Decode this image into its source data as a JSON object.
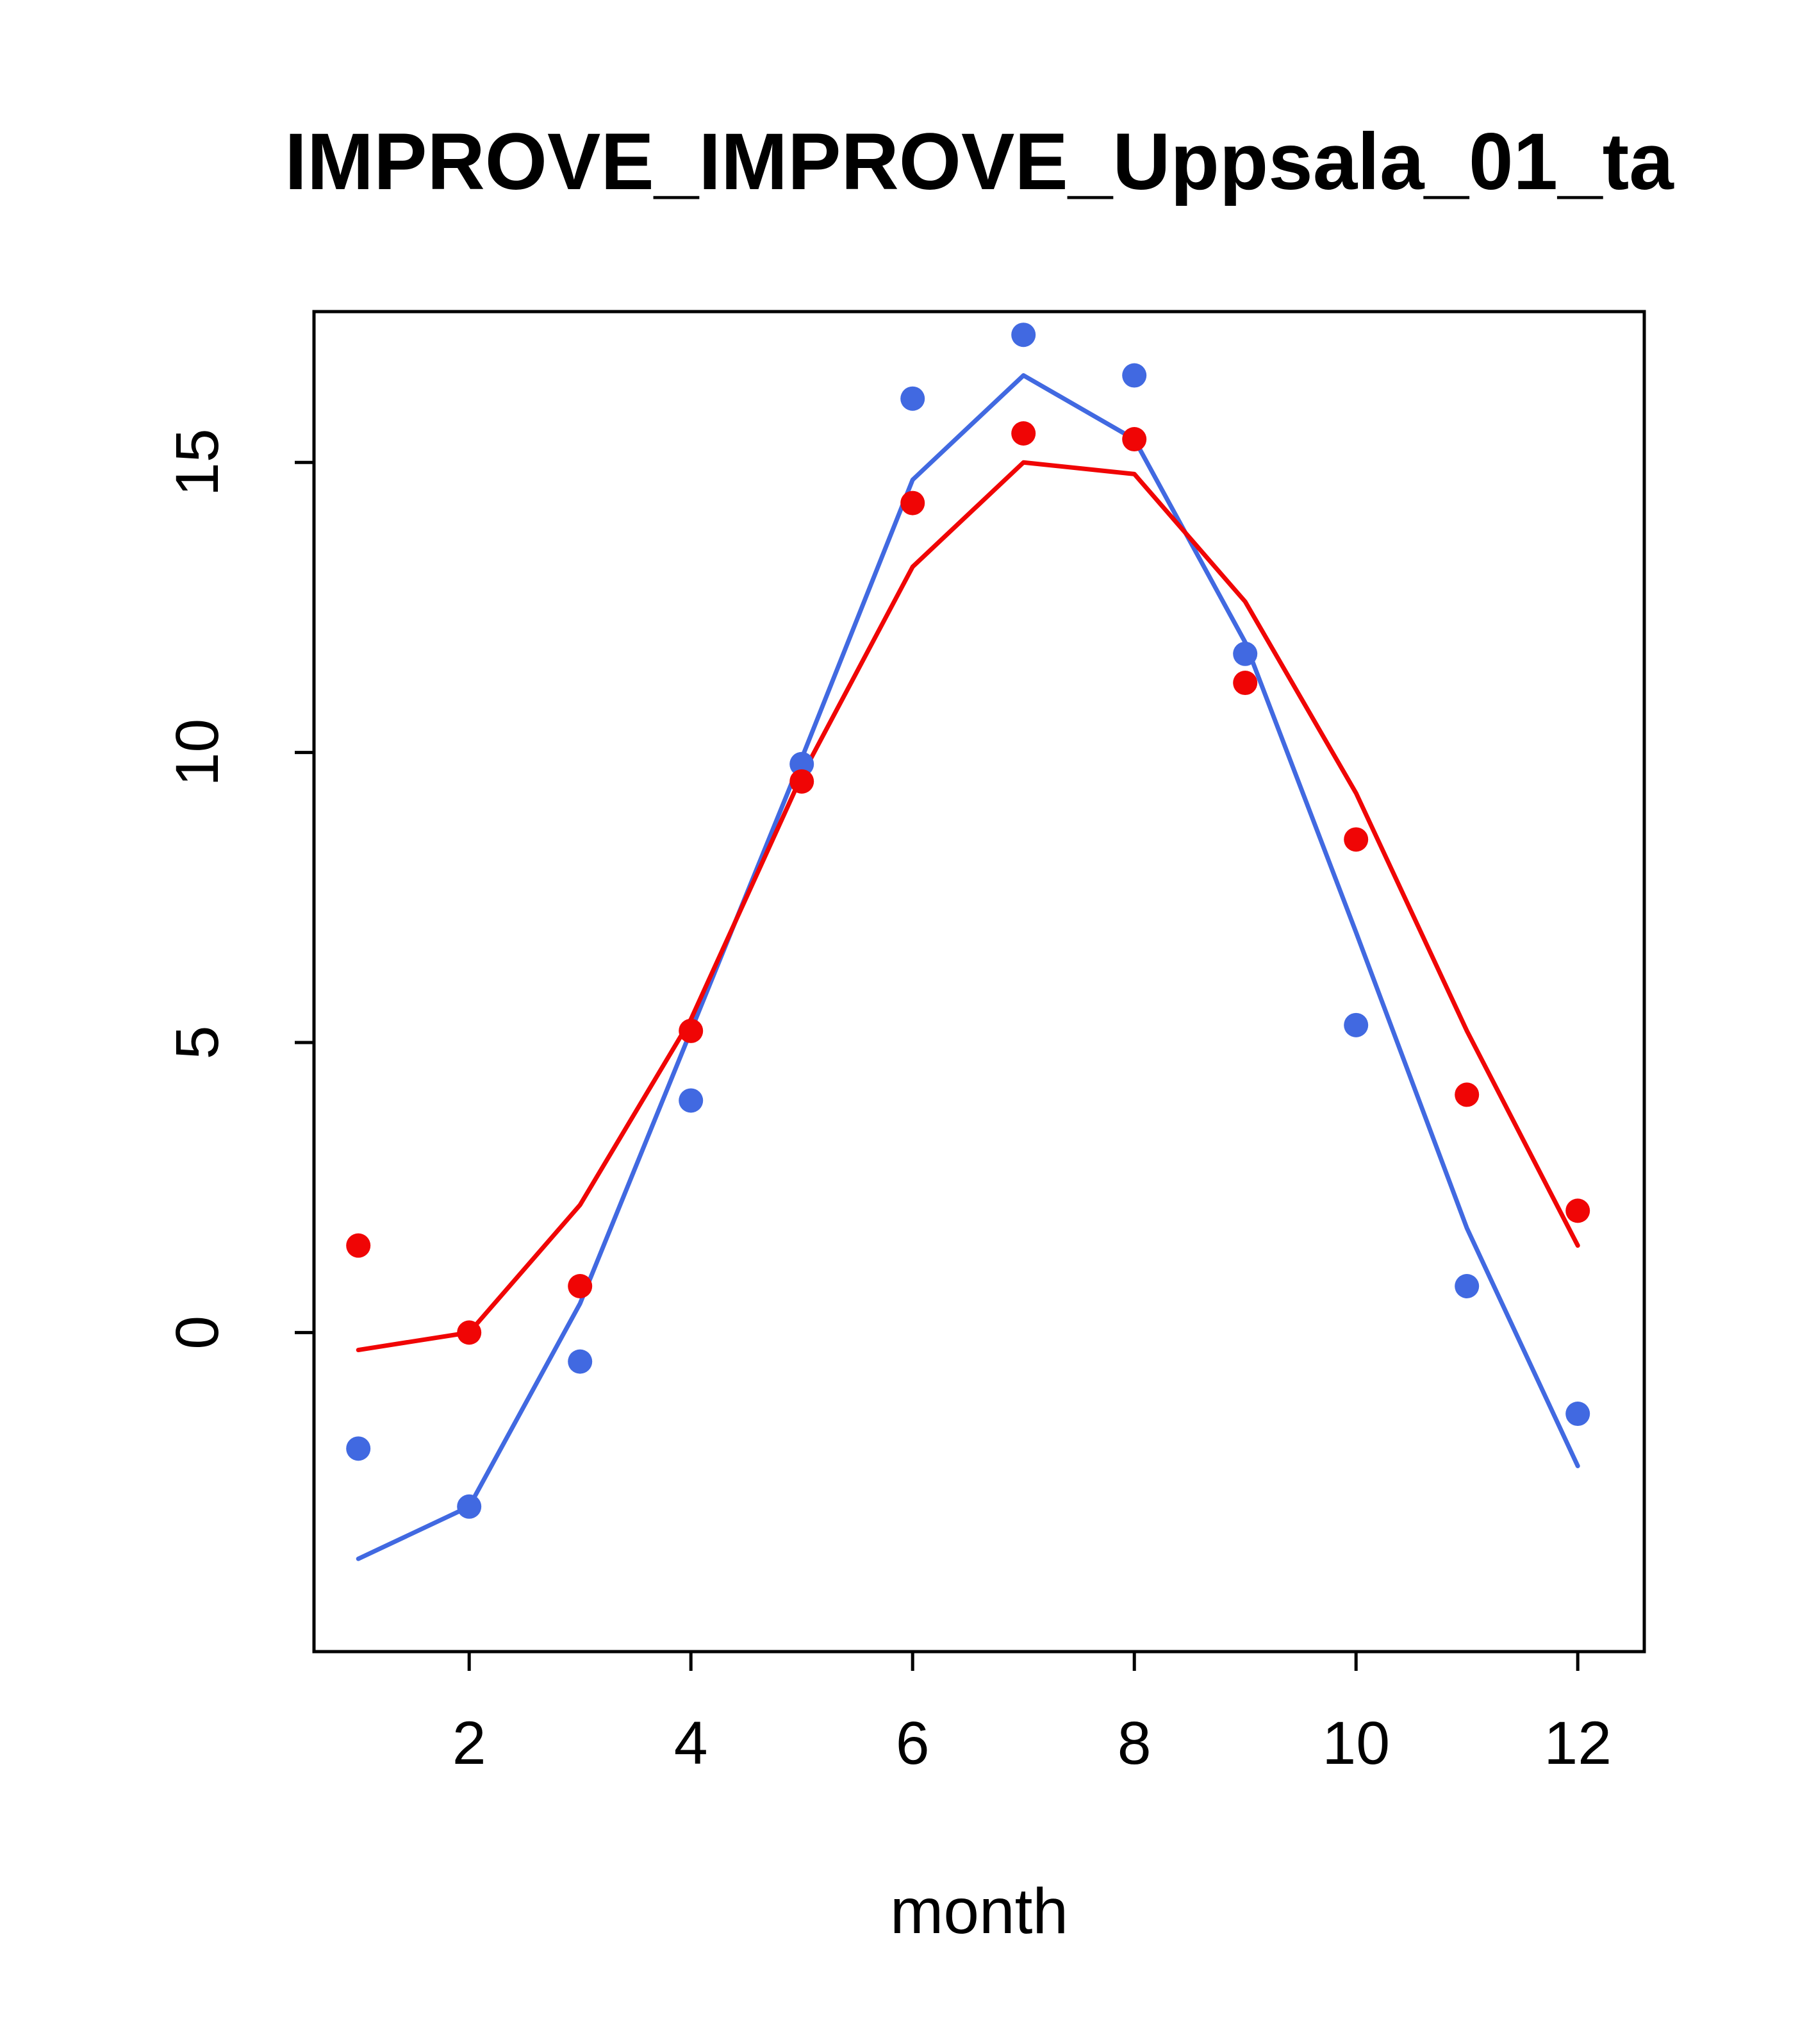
{
  "chart_data": {
    "type": "line",
    "title": "IMPROVE_IMPROVE_Uppsala_01_ta",
    "xlabel": "month",
    "ylabel": "",
    "x": [
      1,
      2,
      3,
      4,
      5,
      6,
      7,
      8,
      9,
      10,
      11,
      12
    ],
    "x_ticks": [
      2,
      4,
      6,
      8,
      10,
      12
    ],
    "y_ticks": [
      0,
      5,
      10,
      15
    ],
    "xlim": [
      0.6,
      12.6
    ],
    "ylim": [
      -5.5,
      17.6
    ],
    "grid": false,
    "legend": "none",
    "colors": {
      "blue": "#4169e1",
      "red": "#f00505"
    },
    "series": [
      {
        "name": "blue-line",
        "type": "line",
        "color": "#4169e1",
        "values": [
          -3.9,
          -3.0,
          0.5,
          5.2,
          9.9,
          14.7,
          16.5,
          15.4,
          11.9,
          6.9,
          1.8,
          -2.3
        ]
      },
      {
        "name": "red-line",
        "type": "line",
        "color": "#f00505",
        "values": [
          -0.3,
          0.0,
          2.2,
          5.4,
          9.6,
          13.2,
          15.0,
          14.8,
          12.6,
          9.3,
          5.2,
          1.5
        ]
      },
      {
        "name": "blue-points",
        "type": "scatter",
        "color": "#4169e1",
        "values": [
          -2.0,
          -3.0,
          -0.5,
          4.0,
          9.8,
          16.1,
          17.2,
          16.5,
          11.7,
          5.3,
          0.8,
          -1.4
        ]
      },
      {
        "name": "red-points",
        "type": "scatter",
        "color": "#f00505",
        "values": [
          1.5,
          0.0,
          0.8,
          5.2,
          9.5,
          14.3,
          15.5,
          15.4,
          11.2,
          8.5,
          4.1,
          2.1
        ]
      }
    ]
  }
}
